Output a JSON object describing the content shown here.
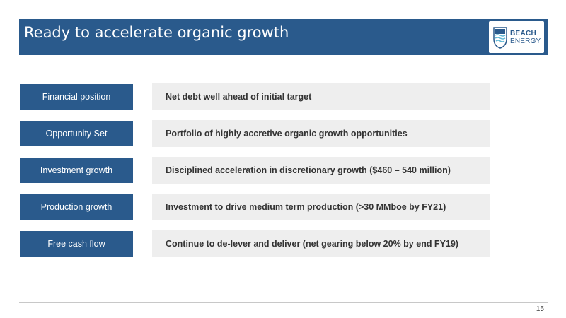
{
  "slide": {
    "title": "Ready to accelerate organic growth",
    "page_number": "15"
  },
  "logo": {
    "line1": "BEACH",
    "line2": "ENERGY"
  },
  "rows": [
    {
      "label": "Financial position",
      "text": "Net debt well ahead of initial target"
    },
    {
      "label": "Opportunity Set",
      "text": "Portfolio of highly accretive organic growth opportunities"
    },
    {
      "label": "Investment growth",
      "text": "Disciplined acceleration in discretionary growth  ($460 – 540 million)"
    },
    {
      "label": "Production growth",
      "text": "Investment to drive medium term production (>30 MMboe by FY21)"
    },
    {
      "label": "Free cash flow",
      "text": "Continue to de-lever and deliver (net gearing below 20% by end FY19)"
    }
  ],
  "colors": {
    "brand_blue": "#2a5a8c",
    "panel_grey": "#eeeeee"
  }
}
